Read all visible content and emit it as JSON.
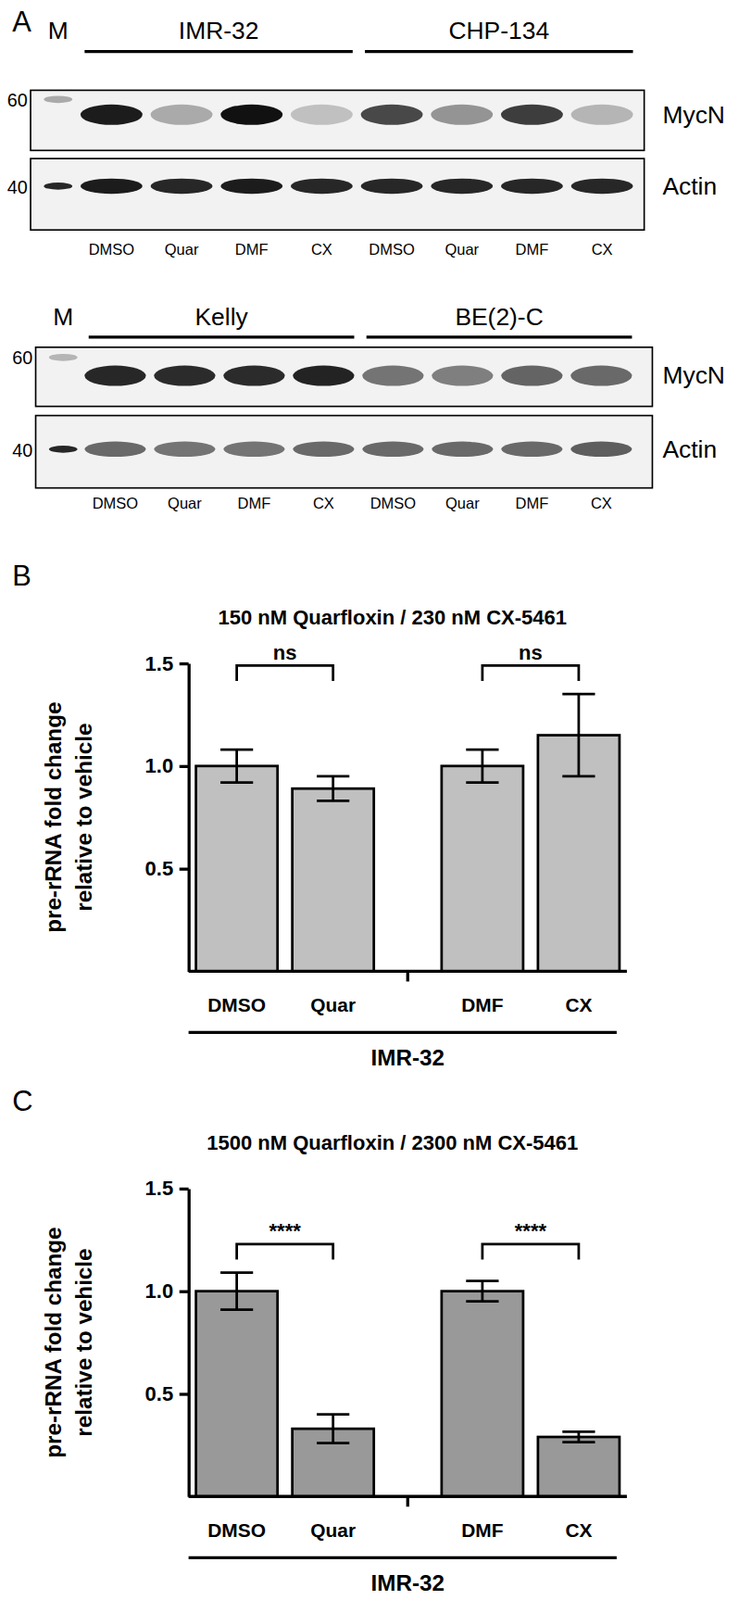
{
  "panel_labels": [
    "A",
    "B",
    "C"
  ],
  "blots": [
    {
      "marker": "M",
      "groups": [
        "IMR-32",
        "CHP-134"
      ],
      "lanes": [
        "DMSO",
        "Quar",
        "DMF",
        "CX",
        "DMSO",
        "Quar",
        "DMF",
        "CX"
      ],
      "rows": [
        {
          "name": "MycN",
          "size_marker": 60,
          "marker_intensity": 0.3,
          "intensity": [
            0.95,
            0.3,
            1.0,
            0.2,
            0.75,
            0.4,
            0.8,
            0.25
          ]
        },
        {
          "name": "Actin",
          "size_marker": 40,
          "marker_intensity": 0.9,
          "intensity": [
            0.95,
            0.9,
            0.95,
            0.9,
            0.9,
            0.9,
            0.9,
            0.9
          ]
        }
      ]
    },
    {
      "marker": "M",
      "groups": [
        "Kelly",
        "BE(2)-C"
      ],
      "lanes": [
        "DMSO",
        "Quar",
        "DMF",
        "CX",
        "DMSO",
        "Quar",
        "DMF",
        "CX"
      ],
      "rows": [
        {
          "name": "MycN",
          "size_marker": 60,
          "marker_intensity": 0.25,
          "intensity": [
            0.9,
            0.88,
            0.88,
            0.92,
            0.55,
            0.5,
            0.62,
            0.6
          ]
        },
        {
          "name": "Actin",
          "size_marker": 40,
          "marker_intensity": 0.9,
          "intensity": [
            0.6,
            0.55,
            0.55,
            0.6,
            0.6,
            0.6,
            0.6,
            0.65
          ]
        }
      ]
    }
  ],
  "chart_data": [
    {
      "type": "bar",
      "title": "150 nM Quarfloxin / 230 nM CX-5461",
      "ylabel": [
        "pre-rRNA fold change",
        "relative to vehicle"
      ],
      "categories": [
        "DMSO",
        "Quar",
        "DMF",
        "CX"
      ],
      "values": [
        1.0,
        0.89,
        1.0,
        1.15
      ],
      "errors": [
        0.08,
        0.06,
        0.08,
        0.2
      ],
      "color": "#c0c0c0",
      "ylim": [
        0,
        1.5
      ],
      "yticks": [
        0.5,
        {
          "value": 1,
          "label": "1.0"
        },
        1.5
      ],
      "group_label": "IMR-32",
      "annotations": [
        {
          "text": "ns",
          "between": [
            0,
            1
          ]
        },
        {
          "text": "ns",
          "between": [
            2,
            3
          ]
        }
      ]
    },
    {
      "type": "bar",
      "title": "1500 nM Quarfloxin / 2300 nM CX-5461",
      "ylabel": [
        "pre-rRNA fold change",
        "relative to vehicle"
      ],
      "categories": [
        "DMSO",
        "Quar",
        "DMF",
        "CX"
      ],
      "values": [
        1.0,
        0.33,
        1.0,
        0.29
      ],
      "errors": [
        0.09,
        0.07,
        0.05,
        0.025
      ],
      "color": "#999999",
      "ylim": [
        0,
        1.5
      ],
      "yticks": [
        0.5,
        {
          "value": 1,
          "label": "1.0"
        },
        1.5
      ],
      "group_label": "IMR-32",
      "annotations": [
        {
          "text": "****",
          "between": [
            0,
            1
          ]
        },
        {
          "text": "****",
          "between": [
            2,
            3
          ]
        }
      ]
    }
  ]
}
